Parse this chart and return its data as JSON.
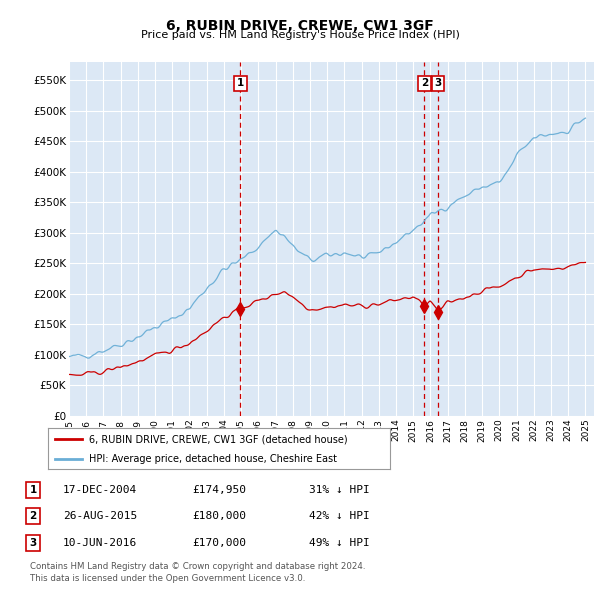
{
  "title": "6, RUBIN DRIVE, CREWE, CW1 3GF",
  "subtitle": "Price paid vs. HM Land Registry's House Price Index (HPI)",
  "background_color": "#ffffff",
  "plot_bg_color": "#dce8f5",
  "grid_color": "#ffffff",
  "ylim": [
    0,
    580000
  ],
  "yticks": [
    0,
    50000,
    100000,
    150000,
    200000,
    250000,
    300000,
    350000,
    400000,
    450000,
    500000,
    550000
  ],
  "ytick_labels": [
    "£0",
    "£50K",
    "£100K",
    "£150K",
    "£200K",
    "£250K",
    "£300K",
    "£350K",
    "£400K",
    "£450K",
    "£500K",
    "£550K"
  ],
  "hpi_color": "#6aaed6",
  "price_color": "#cc0000",
  "vline_color": "#cc0000",
  "legend_price_label": "6, RUBIN DRIVE, CREWE, CW1 3GF (detached house)",
  "legend_hpi_label": "HPI: Average price, detached house, Cheshire East",
  "table_rows": [
    {
      "num": "1",
      "date": "17-DEC-2004",
      "price": "£174,950",
      "hpi": "31% ↓ HPI"
    },
    {
      "num": "2",
      "date": "26-AUG-2015",
      "price": "£180,000",
      "hpi": "42% ↓ HPI"
    },
    {
      "num": "3",
      "date": "10-JUN-2016",
      "price": "£170,000",
      "hpi": "49% ↓ HPI"
    }
  ],
  "footer": "Contains HM Land Registry data © Crown copyright and database right 2024.\nThis data is licensed under the Open Government Licence v3.0.",
  "xmin": 1995.0,
  "xmax": 2025.5,
  "t1_x": 2004.96,
  "t1_y": 174950,
  "t2_x": 2015.65,
  "t2_y": 180000,
  "t3_x": 2016.44,
  "t3_y": 170000
}
